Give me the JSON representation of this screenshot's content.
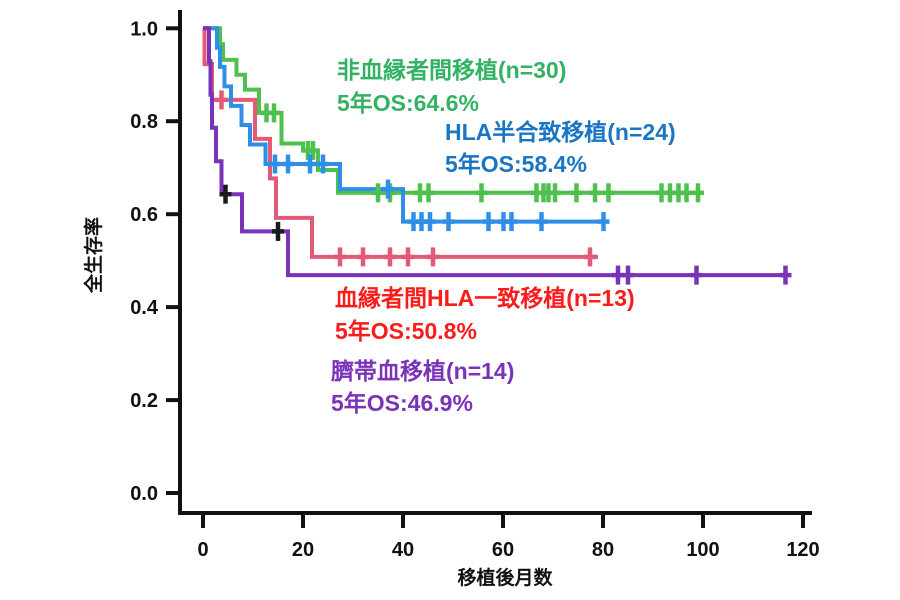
{
  "chart_data": {
    "type": "line",
    "subtype": "kaplan-meier-survival",
    "title": "",
    "xlabel": "移植後月数",
    "ylabel": "全生存率",
    "xlim": [
      0,
      120
    ],
    "ylim": [
      0.0,
      1.0
    ],
    "xticks": [
      "0",
      "20",
      "40",
      "60",
      "80",
      "100",
      "120"
    ],
    "xtick_values": [
      0,
      20,
      40,
      60,
      80,
      100,
      120
    ],
    "yticks": [
      "0.0",
      "0.2",
      "0.4",
      "0.6",
      "0.8",
      "1.0"
    ],
    "ytick_values": [
      0.0,
      0.2,
      0.4,
      0.6,
      0.8,
      1.0
    ],
    "grid": false,
    "censor_black_color": "#1a1a1a",
    "series": [
      {
        "key": "unrelated-donor",
        "name": "非血縁者間移植",
        "n": 30,
        "five_year_os": "64.6%",
        "label_line1": "非血縁者間移植(n=30)",
        "label_line2": "5年OS:64.6%",
        "color": "#4ec04e",
        "text_color": "#33b264",
        "end": 99,
        "steps": [
          [
            0,
            1.0
          ],
          [
            3.4,
            0.966
          ],
          [
            4.0,
            0.932
          ],
          [
            6.7,
            0.9
          ],
          [
            8.4,
            0.868
          ],
          [
            11.2,
            0.818
          ],
          [
            15.7,
            0.752
          ],
          [
            20.0,
            0.737
          ],
          [
            23.0,
            0.695
          ],
          [
            27.0,
            0.646
          ]
        ],
        "censors": [
          [
            12.7,
            0.818
          ],
          [
            14.2,
            0.818
          ],
          [
            21.0,
            0.737
          ],
          [
            22.0,
            0.737
          ],
          [
            35.0,
            0.646
          ],
          [
            37.4,
            0.646
          ],
          [
            43.4,
            0.646
          ],
          [
            45.1,
            0.646
          ],
          [
            55.7,
            0.646
          ],
          [
            66.7,
            0.646
          ],
          [
            68.1,
            0.646
          ],
          [
            69.1,
            0.646
          ],
          [
            70.4,
            0.646
          ],
          [
            74.7,
            0.646
          ],
          [
            78.4,
            0.646
          ],
          [
            81.1,
            0.646
          ],
          [
            91.7,
            0.646
          ],
          [
            93.4,
            0.646
          ],
          [
            95.1,
            0.646
          ],
          [
            96.7,
            0.646
          ],
          [
            99.0,
            0.646
          ]
        ],
        "black_censors": []
      },
      {
        "key": "related-hla-matched",
        "name": "血縁者間HLA一致移植",
        "n": 13,
        "five_year_os": "50.8%",
        "label_line1": "血縁者間HLA一致移植(n=13)",
        "label_line2": "5年OS:50.8%",
        "color": "#e25a75",
        "text_color": "#fb1b1b",
        "end": 79,
        "steps": [
          [
            0,
            1.0
          ],
          [
            0.3,
            0.923
          ],
          [
            1.8,
            0.846
          ],
          [
            10.4,
            0.762
          ],
          [
            13.4,
            0.677
          ],
          [
            14.6,
            0.592
          ],
          [
            21.8,
            0.508
          ]
        ],
        "censors": [
          [
            3.7,
            0.846
          ],
          [
            27.4,
            0.508
          ],
          [
            32.0,
            0.508
          ],
          [
            37.4,
            0.508
          ],
          [
            41.0,
            0.508
          ],
          [
            46.0,
            0.508
          ],
          [
            77.4,
            0.508
          ]
        ],
        "black_censors": []
      },
      {
        "key": "hla-haploidentical",
        "name": "HLA半合致移植",
        "n": 24,
        "five_year_os": "58.4%",
        "label_line1": "HLA半合致移植(n=24)",
        "label_line2": "5年OS:58.4%",
        "color": "#2f8fe6",
        "text_color": "#1a75c2",
        "end": 80.1,
        "steps": [
          [
            0,
            1.0
          ],
          [
            2.8,
            0.958
          ],
          [
            3.4,
            0.917
          ],
          [
            4.3,
            0.875
          ],
          [
            5.6,
            0.833
          ],
          [
            7.7,
            0.792
          ],
          [
            9.4,
            0.75
          ],
          [
            12.5,
            0.708
          ],
          [
            27.4,
            0.654
          ],
          [
            40.0,
            0.584
          ]
        ],
        "censors": [
          [
            14.4,
            0.708
          ],
          [
            17.0,
            0.708
          ],
          [
            21.4,
            0.708
          ],
          [
            24.0,
            0.708
          ],
          [
            37.0,
            0.654
          ],
          [
            42.1,
            0.584
          ],
          [
            43.7,
            0.584
          ],
          [
            45.4,
            0.584
          ],
          [
            49.1,
            0.584
          ],
          [
            57.1,
            0.584
          ],
          [
            60.1,
            0.584
          ],
          [
            61.7,
            0.584
          ],
          [
            67.7,
            0.584
          ],
          [
            80.1,
            0.584
          ]
        ],
        "black_censors": []
      },
      {
        "key": "cord-blood",
        "name": "臍帯血移植",
        "n": 14,
        "five_year_os": "46.9%",
        "label_line1": "臍帯血移植(n=14)",
        "label_line2": "5年OS:46.9%",
        "color": "#7a32b8",
        "text_color": "#7a32b8",
        "end": 116.5,
        "steps": [
          [
            0,
            1.0
          ],
          [
            1.2,
            0.929
          ],
          [
            1.5,
            0.857
          ],
          [
            1.8,
            0.786
          ],
          [
            2.6,
            0.714
          ],
          [
            3.7,
            0.643
          ],
          [
            7.8,
            0.563
          ],
          [
            17.0,
            0.469
          ]
        ],
        "censors": [
          [
            83.0,
            0.469
          ],
          [
            85.0,
            0.469
          ],
          [
            98.7,
            0.469
          ],
          [
            116.5,
            0.469
          ]
        ],
        "black_censors": [
          [
            4.5,
            0.643
          ],
          [
            15.0,
            0.563
          ]
        ]
      }
    ]
  }
}
